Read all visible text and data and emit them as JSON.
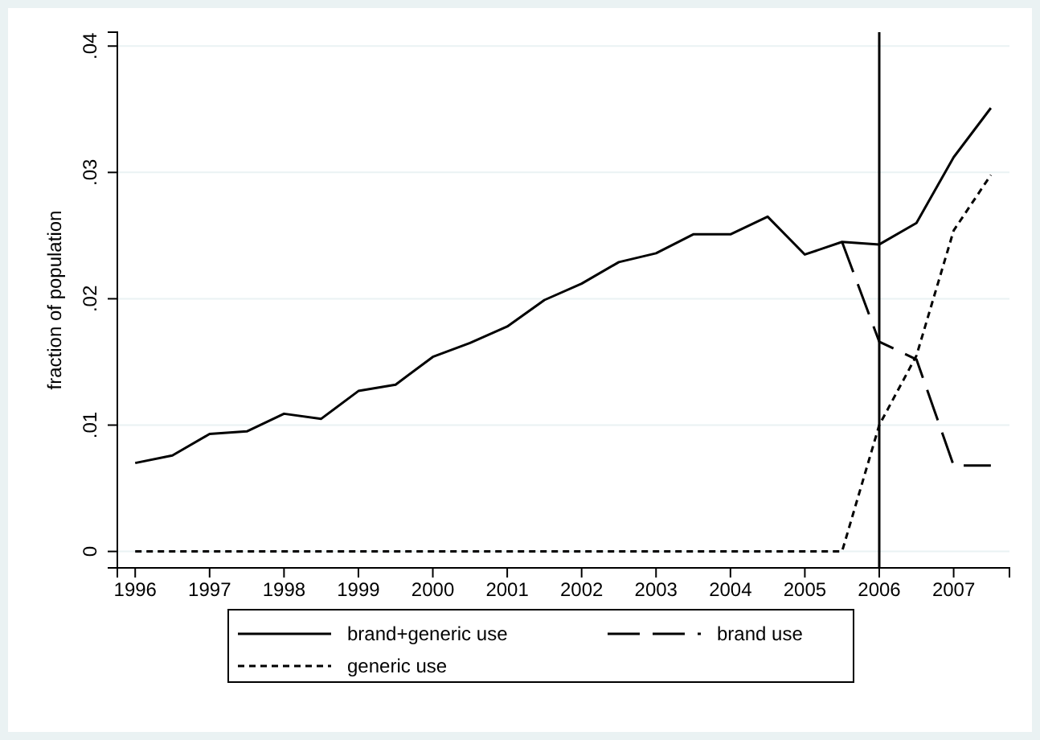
{
  "chart_data": {
    "type": "line",
    "ylabel": "fraction of population",
    "x": [
      1996,
      1996.5,
      1997,
      1997.5,
      1998,
      1998.5,
      1999,
      1999.5,
      2000,
      2000.5,
      2001,
      2001.5,
      2002,
      2002.5,
      2003,
      2003.5,
      2004,
      2004.5,
      2005,
      2005.5,
      2006,
      2006.5,
      2007,
      2007.5
    ],
    "series": [
      {
        "name": "brand+generic use",
        "color": "#000000",
        "line_style": "solid",
        "values": [
          0.007,
          0.0076,
          0.0093,
          0.0095,
          0.0109,
          0.0105,
          0.0127,
          0.0132,
          0.0154,
          0.0165,
          0.0178,
          0.0199,
          0.0212,
          0.0229,
          0.0236,
          0.0251,
          0.0251,
          0.0265,
          0.0235,
          0.0245,
          0.0243,
          0.026,
          0.0312,
          0.0351
        ]
      },
      {
        "name": "brand use",
        "color": "#000000",
        "line_style": "dashed",
        "values": [
          null,
          null,
          null,
          null,
          null,
          null,
          null,
          null,
          null,
          null,
          null,
          null,
          null,
          null,
          null,
          null,
          null,
          null,
          null,
          0.0245,
          0.0166,
          0.0152,
          0.0068,
          0.0068
        ]
      },
      {
        "name": "generic use",
        "color": "#000000",
        "line_style": "dotted",
        "values": [
          0,
          0,
          0,
          0,
          0,
          0,
          0,
          0,
          0,
          0,
          0,
          0,
          0,
          0,
          0,
          0,
          0,
          0,
          0,
          0,
          0.01,
          0.0155,
          0.0254,
          0.0298
        ]
      }
    ],
    "xlim": [
      1995.76,
      2007.75
    ],
    "xticks": [
      1996,
      1997,
      1998,
      1999,
      2000,
      2001,
      2002,
      2003,
      2004,
      2005,
      2006,
      2007
    ],
    "ylim": [
      -0.0013,
      0.0411
    ],
    "yticks": [
      {
        "value": 0,
        "label": "0"
      },
      {
        "value": 0.01,
        "label": ".01"
      },
      {
        "value": 0.02,
        "label": ".02"
      },
      {
        "value": 0.03,
        "label": ".03"
      },
      {
        "value": 0.04,
        "label": ".04"
      }
    ],
    "grid": "y",
    "legend": "bottom",
    "marker": "none",
    "ref_lines": [
      {
        "axis": "x",
        "value": 2006,
        "color": "#000000",
        "line_style": "solid"
      }
    ]
  }
}
